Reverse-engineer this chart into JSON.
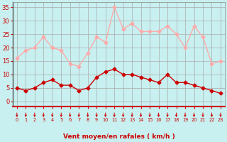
{
  "hours": [
    0,
    1,
    2,
    3,
    4,
    5,
    6,
    7,
    8,
    9,
    10,
    11,
    12,
    13,
    14,
    15,
    16,
    17,
    18,
    19,
    20,
    21,
    22,
    23
  ],
  "wind_avg": [
    5,
    4,
    5,
    7,
    8,
    6,
    6,
    4,
    5,
    9,
    11,
    12,
    10,
    10,
    9,
    8,
    7,
    10,
    7,
    7,
    6,
    5,
    4,
    3
  ],
  "wind_gust": [
    16,
    19,
    20,
    24,
    20,
    19,
    14,
    13,
    18,
    24,
    22,
    35,
    27,
    29,
    26,
    26,
    26,
    28,
    25,
    20,
    28,
    24,
    14,
    15
  ],
  "avg_color": "#cc0000",
  "gust_color": "#ffaaaa",
  "background_color": "#c8f0f0",
  "grid_color": "#aaaaaa",
  "xlabel": "Vent moyen/en rafales ( km/h )",
  "yticks": [
    0,
    5,
    10,
    15,
    20,
    25,
    30,
    35
  ],
  "ylim": [
    -2,
    37
  ],
  "xlim": [
    -0.5,
    23.5
  ],
  "tick_color": "#cc0000",
  "xlabel_color": "#cc0000"
}
